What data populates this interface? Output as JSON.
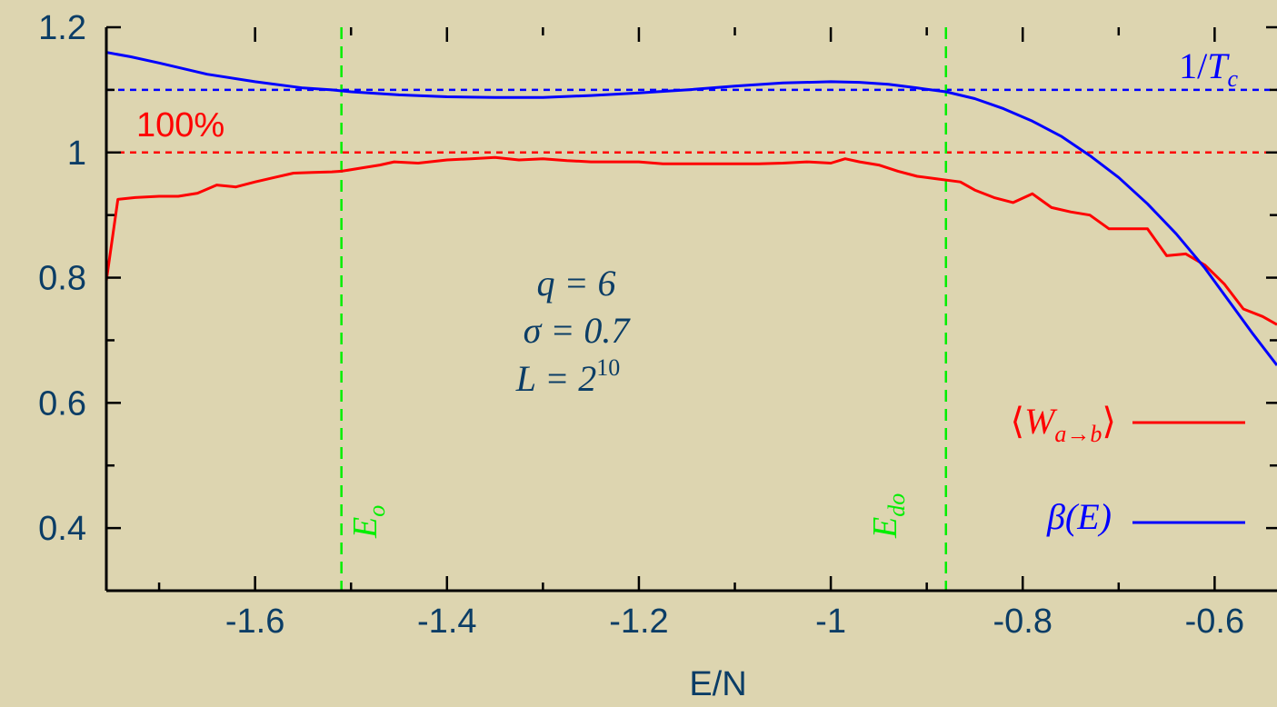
{
  "colors": {
    "background": "#ddd5b0",
    "text": "#0b3d66",
    "red": "#ff0000",
    "blue": "#0000ff",
    "green": "#00ee00",
    "axis": "#000000"
  },
  "chart_data": {
    "type": "line",
    "title": "",
    "xlabel": "E/N",
    "ylabel": "",
    "xlim": [
      -1.755,
      -0.535
    ],
    "ylim": [
      0.3,
      1.2
    ],
    "x_ticks": [
      -1.6,
      -1.4,
      -1.2,
      -1,
      -0.8,
      -0.6
    ],
    "x_tick_labels": [
      "-1.6",
      "-1.4",
      "-1.2",
      "-1",
      "-0.8",
      "-0.6"
    ],
    "y_ticks": [
      0.4,
      0.6,
      0.8,
      1,
      1.2
    ],
    "y_tick_labels": [
      "0.4",
      "0.6",
      "0.8",
      "1",
      "1.2"
    ],
    "grid": false,
    "legend_position": "bottom-right",
    "series": [
      {
        "name": "⟨W_{a→b}⟩",
        "color": "#ff0000",
        "x": [
          -1.755,
          -1.743,
          -1.725,
          -1.7,
          -1.68,
          -1.66,
          -1.64,
          -1.62,
          -1.6,
          -1.58,
          -1.56,
          -1.54,
          -1.52,
          -1.51,
          -1.49,
          -1.47,
          -1.455,
          -1.43,
          -1.4,
          -1.375,
          -1.35,
          -1.325,
          -1.3,
          -1.275,
          -1.25,
          -1.225,
          -1.2,
          -1.175,
          -1.15,
          -1.125,
          -1.1,
          -1.075,
          -1.05,
          -1.025,
          -1.0,
          -0.985,
          -0.97,
          -0.95,
          -0.93,
          -0.91,
          -0.89,
          -0.875,
          -0.865,
          -0.85,
          -0.83,
          -0.81,
          -0.79,
          -0.77,
          -0.75,
          -0.73,
          -0.71,
          -0.69,
          -0.67,
          -0.65,
          -0.63,
          -0.61,
          -0.59,
          -0.57,
          -0.55,
          -0.535
        ],
        "y": [
          0.795,
          0.925,
          0.928,
          0.93,
          0.93,
          0.935,
          0.948,
          0.945,
          0.953,
          0.96,
          0.967,
          0.968,
          0.969,
          0.97,
          0.975,
          0.98,
          0.985,
          0.983,
          0.988,
          0.99,
          0.992,
          0.988,
          0.99,
          0.987,
          0.985,
          0.985,
          0.985,
          0.982,
          0.982,
          0.982,
          0.982,
          0.982,
          0.983,
          0.985,
          0.983,
          0.99,
          0.985,
          0.98,
          0.97,
          0.962,
          0.958,
          0.955,
          0.953,
          0.94,
          0.928,
          0.92,
          0.934,
          0.912,
          0.905,
          0.9,
          0.878,
          0.878,
          0.878,
          0.835,
          0.838,
          0.82,
          0.79,
          0.75,
          0.738,
          0.725
        ]
      },
      {
        "name": "β(E)",
        "color": "#0000ff",
        "x": [
          -1.755,
          -1.73,
          -1.7,
          -1.65,
          -1.6,
          -1.55,
          -1.52,
          -1.5,
          -1.45,
          -1.4,
          -1.35,
          -1.3,
          -1.25,
          -1.2,
          -1.15,
          -1.1,
          -1.05,
          -1.0,
          -0.97,
          -0.94,
          -0.91,
          -0.88,
          -0.85,
          -0.82,
          -0.79,
          -0.76,
          -0.73,
          -0.7,
          -0.67,
          -0.64,
          -0.61,
          -0.58,
          -0.56,
          -0.535
        ],
        "y": [
          1.16,
          1.153,
          1.143,
          1.125,
          1.113,
          1.103,
          1.1,
          1.097,
          1.092,
          1.089,
          1.088,
          1.088,
          1.091,
          1.095,
          1.1,
          1.106,
          1.111,
          1.113,
          1.112,
          1.109,
          1.103,
          1.097,
          1.086,
          1.07,
          1.05,
          1.026,
          0.995,
          0.96,
          0.918,
          0.87,
          0.815,
          0.752,
          0.71,
          0.66
        ]
      }
    ],
    "reference_lines": [
      {
        "orientation": "horizontal",
        "value": 1.1,
        "color": "#0000ff",
        "label": "1/T_c"
      },
      {
        "orientation": "horizontal",
        "value": 1.0,
        "color": "#ff0000",
        "label": "100%"
      },
      {
        "orientation": "vertical",
        "value": -1.51,
        "color": "#00ee00",
        "label": "E_o"
      },
      {
        "orientation": "vertical",
        "value": -0.88,
        "color": "#00ee00",
        "label": "E_do"
      }
    ],
    "annotations": [
      "q = 6",
      "σ = 0.7",
      "L = 2^10"
    ]
  },
  "labels": {
    "pct": "100%",
    "tc_num": "1/",
    "tc_var": "T",
    "tc_sub": "c",
    "eo_var": "E",
    "eo_sub": "o",
    "edo_var": "E",
    "edo_sub": "do",
    "q_line": "q = 6",
    "sigma_line": "σ = 0.7",
    "l_base": "L = 2",
    "l_exp": "10",
    "legend_w_open": "⟨",
    "legend_w_var": "W",
    "legend_w_sub": "a→b",
    "legend_w_close": "⟩",
    "legend_beta": "β(E)"
  }
}
